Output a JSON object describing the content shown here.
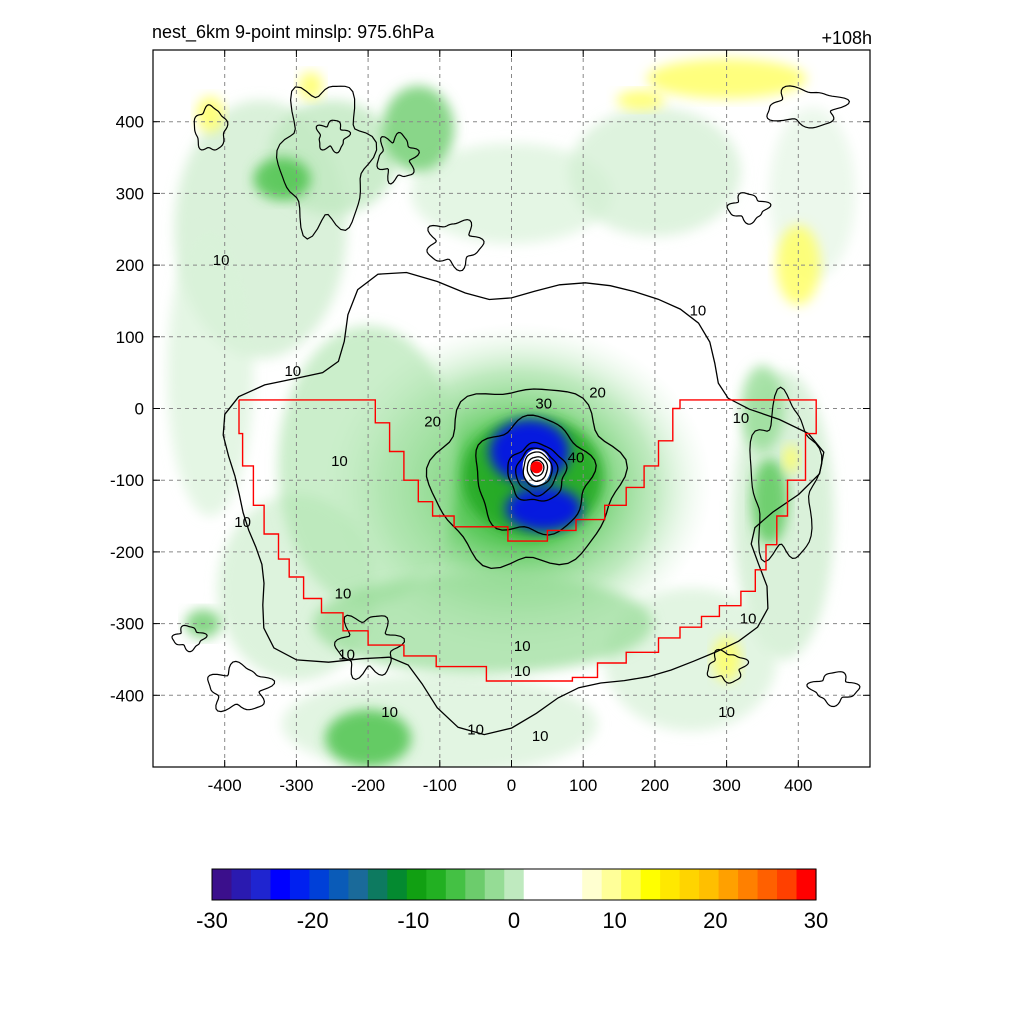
{
  "chart_data": {
    "type": "contour",
    "title": "nest_6km  9-point minslp: 975.6hPa",
    "subtitle_right": "+108h",
    "xlim": [
      -500,
      500
    ],
    "ylim": [
      -500,
      500
    ],
    "x_ticks": [
      -400,
      -300,
      -200,
      -100,
      0,
      100,
      200,
      300,
      400
    ],
    "y_ticks": [
      400,
      300,
      200,
      100,
      0,
      -100,
      -200,
      -300,
      -400
    ],
    "grid": true,
    "grid_style": "dashed",
    "center_marker": {
      "x": 35,
      "y": -82,
      "color": "#ff0000"
    },
    "contour_lines": {
      "color": "#000000",
      "levels": [
        10,
        20,
        30,
        40
      ],
      "labels": [
        "10",
        "10",
        "10",
        "10",
        "10",
        "10",
        "10",
        "10",
        "10",
        "10",
        "10",
        "10",
        "10",
        "10",
        "20",
        "20",
        "30",
        "40"
      ]
    },
    "filled_field": {
      "colormap": "purple-blue-green-white-yellow-red",
      "dominant_colors": {
        "positive": "#ffff00",
        "negative_moderate": "#22aa22",
        "negative_strong": "#0000ff",
        "negative_extreme": "#3b0f8c",
        "zero": "#ffffff"
      }
    },
    "colorbar": {
      "ticks": [
        "-30",
        "-20",
        "-10",
        "0",
        "10",
        "20",
        "30"
      ],
      "range": [
        -30,
        30
      ],
      "colors": [
        "#3b0f8c",
        "#2a1ab0",
        "#1f25d0",
        "#0000ff",
        "#0020f0",
        "#0040d8",
        "#0a5bb8",
        "#1a6a9a",
        "#0d7a60",
        "#048a30",
        "#11a012",
        "#22b022",
        "#44c144",
        "#6ccc6c",
        "#95dc95",
        "#bfeabf",
        "#ffffff",
        "#ffffff",
        "#ffffff",
        "#ffffd0",
        "#ffff99",
        "#ffff55",
        "#ffff00",
        "#ffe800",
        "#ffd400",
        "#ffbf00",
        "#ffa000",
        "#ff8000",
        "#ff6000",
        "#ff4000",
        "#ff0000"
      ]
    }
  }
}
